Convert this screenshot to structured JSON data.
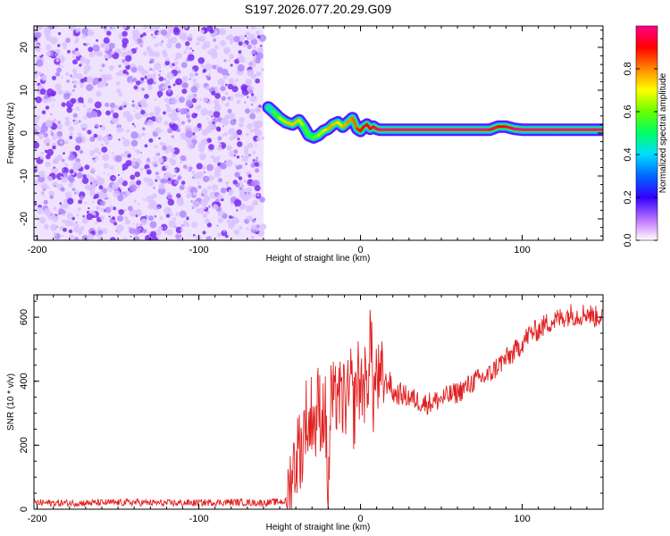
{
  "title": "S197.2026.077.20.29.G09",
  "chart_data": [
    {
      "type": "heatmap",
      "title": "S197.2026.077.20.29.G09",
      "xlabel": "Height of straight line (km)",
      "ylabel": "Frequency (Hz)",
      "xlim": [
        -202,
        150
      ],
      "ylim": [
        -25,
        25
      ],
      "xticks": [
        "-200",
        "-100",
        "0",
        "100"
      ],
      "yticks": [
        "-20",
        "-10",
        "0",
        "10",
        "20"
      ],
      "noise_region_x": [
        -202,
        -60
      ],
      "ridge_x": [
        -57,
        -54,
        -50,
        -46,
        -42,
        -38,
        -35,
        -32,
        -29,
        -26,
        -23,
        -20,
        -17,
        -14,
        -11,
        -8,
        -5,
        -2,
        0,
        2,
        4,
        6,
        8,
        10,
        12,
        20,
        40,
        60,
        80,
        85,
        90,
        95,
        100,
        120,
        150
      ],
      "ridge_freq_hz": [
        6,
        5,
        3.5,
        2.5,
        2,
        3,
        1.5,
        -0.5,
        -1,
        -0.5,
        0.5,
        1,
        2,
        2.5,
        1.5,
        2.5,
        3.5,
        1,
        0.5,
        1.5,
        2,
        1,
        1.5,
        1,
        0.8,
        0.8,
        0.8,
        0.8,
        0.8,
        1.5,
        1.5,
        1,
        0.8,
        0.8,
        0.8
      ],
      "ridge_amplitude": [
        0.3,
        0.5,
        0.6,
        0.7,
        0.8,
        0.7,
        0.6,
        0.5,
        0.55,
        0.6,
        0.7,
        0.75,
        0.8,
        0.7,
        0.75,
        0.8,
        0.8,
        0.85,
        0.9,
        0.9,
        0.95,
        0.9,
        0.95,
        0.95,
        1.0,
        1.0,
        1.0,
        1.0,
        1.0,
        0.9,
        0.9,
        1.0,
        1.0,
        1.0,
        1.0
      ],
      "colorbar": {
        "label": "Normalized spectral amplitude",
        "range": [
          0,
          1
        ],
        "ticks": [
          "0.0",
          "0.2",
          "0.4",
          "0.6",
          "0.8"
        ]
      }
    },
    {
      "type": "line",
      "xlabel": "Height of straight line (km)",
      "ylabel": "SNR (10 * v/v)",
      "xlim": [
        -202,
        150
      ],
      "ylim": [
        0,
        670
      ],
      "xticks": [
        "-200",
        "-100",
        "0",
        "100"
      ],
      "yticks": [
        "0",
        "200",
        "400",
        "600"
      ],
      "series": [
        {
          "name": "SNR",
          "color": "#e02020",
          "x": [
            -202,
            -180,
            -160,
            -140,
            -120,
            -100,
            -80,
            -60,
            -46,
            -44,
            -42,
            -40,
            -38,
            -36,
            -34,
            -32,
            -30,
            -28,
            -26,
            -24,
            -22,
            -20,
            -18,
            -16,
            -14,
            -12,
            -10,
            -8,
            -6,
            -4,
            -2,
            0,
            2,
            4,
            6,
            8,
            10,
            12,
            14,
            16,
            18,
            20,
            25,
            30,
            35,
            40,
            45,
            50,
            55,
            60,
            65,
            70,
            75,
            80,
            85,
            90,
            95,
            100,
            105,
            110,
            115,
            120,
            125,
            130,
            135,
            140,
            145,
            150
          ],
          "y": [
            20,
            19,
            20,
            21,
            19,
            20,
            22,
            20,
            25,
            60,
            130,
            150,
            200,
            180,
            300,
            240,
            320,
            250,
            340,
            280,
            330,
            40,
            380,
            300,
            400,
            310,
            360,
            330,
            390,
            300,
            420,
            380,
            400,
            360,
            560,
            350,
            430,
            370,
            420,
            390,
            400,
            360,
            360,
            350,
            340,
            330,
            335,
            345,
            355,
            365,
            380,
            400,
            410,
            420,
            450,
            470,
            490,
            520,
            550,
            560,
            580,
            590,
            600,
            610,
            605,
            615,
            600,
            610
          ]
        }
      ]
    }
  ]
}
